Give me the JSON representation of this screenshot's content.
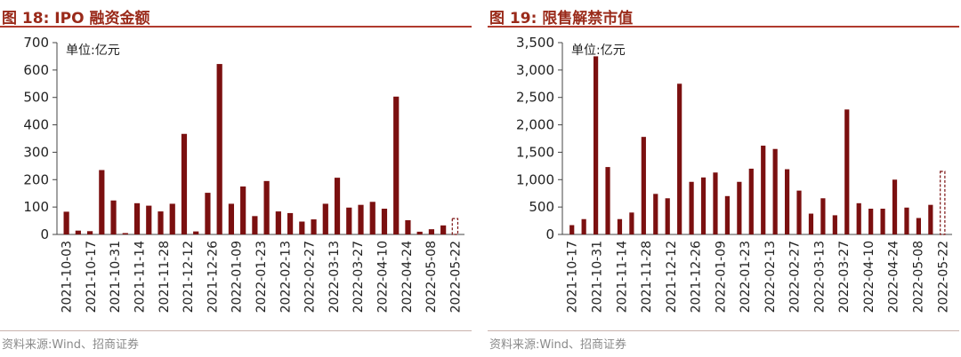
{
  "charts": [
    {
      "figure_title": "图 18:  IPO 融资金额",
      "source": "资料来源:Wind、招商证券"
    },
    {
      "figure_title": "图 19:  限售解禁市值",
      "source": "资料来源:Wind、招商证券"
    }
  ],
  "chart_data": [
    {
      "type": "bar",
      "unit_label": "单位:亿元",
      "ylim": [
        0,
        700
      ],
      "yticks": [
        "0",
        "100",
        "200",
        "300",
        "400",
        "500",
        "600",
        "700"
      ],
      "tick_labels": [
        "2021-10-03",
        "2021-10-17",
        "2021-10-31",
        "2021-11-14",
        "2021-11-28",
        "2021-12-12",
        "2021-12-26",
        "2022-01-09",
        "2022-01-23",
        "2022-02-13",
        "2022-02-27",
        "2022-03-13",
        "2022-03-27",
        "2022-04-10",
        "2022-04-24",
        "2022-05-08",
        "2022-05-22"
      ],
      "values": [
        83,
        14,
        12,
        235,
        124,
        5,
        114,
        105,
        84,
        112,
        367,
        11,
        152,
        622,
        112,
        175,
        67,
        195,
        84,
        78,
        47,
        55,
        112,
        207,
        98,
        108,
        119,
        94,
        503,
        52,
        10,
        19,
        33,
        58
      ],
      "last_bar_dashed": true,
      "bar_color": "#7b1010"
    },
    {
      "type": "bar",
      "unit_label": "单位:亿元",
      "ylim": [
        0,
        3500
      ],
      "yticks": [
        "0",
        "500",
        "1,000",
        "1,500",
        "2,000",
        "2,500",
        "3,000",
        "3,500"
      ],
      "tick_labels": [
        "2021-10-17",
        "2021-10-31",
        "2021-11-14",
        "2021-11-28",
        "2021-12-12",
        "2021-12-26",
        "2022-01-09",
        "2022-01-23",
        "2022-02-13",
        "2022-02-27",
        "2022-03-13",
        "2022-03-27",
        "2022-04-10",
        "2022-04-24",
        "2022-05-08",
        "2022-05-22"
      ],
      "values": [
        170,
        280,
        3250,
        1230,
        280,
        400,
        1780,
        740,
        660,
        2750,
        960,
        1040,
        1130,
        700,
        960,
        1200,
        1620,
        1560,
        1190,
        800,
        380,
        660,
        350,
        2280,
        570,
        470,
        470,
        1000,
        490,
        300,
        540,
        1150
      ],
      "last_bar_dashed": true,
      "bar_color": "#7b1010"
    }
  ]
}
